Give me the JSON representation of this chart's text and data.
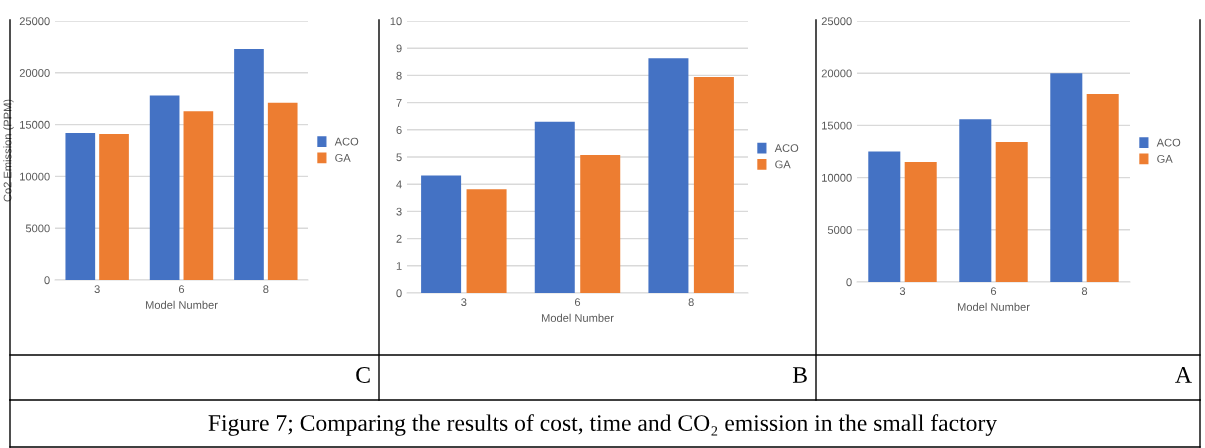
{
  "chart_data": [
    {
      "type": "bar",
      "categories": [
        "3",
        "6",
        "8"
      ],
      "xlabel": "Model Number",
      "ylabel": "Co2 Emission (PPM)",
      "ylim": [
        0,
        25000
      ],
      "yticks": [
        0,
        5000,
        10000,
        15000,
        20000,
        25000
      ],
      "grid": "y",
      "legend": "right",
      "series": [
        {
          "name": "ACO",
          "color": "#4472c4",
          "values": [
            14200,
            17800,
            22300
          ]
        },
        {
          "name": "GA",
          "color": "#ed7d31",
          "values": [
            14100,
            16300,
            17100
          ]
        }
      ],
      "annotations": [
        "C",
        "Figure 7; Comparing the results of cost, time and CO₂ emission in the small factory"
      ]
    },
    {
      "type": "bar",
      "categories": [
        "3",
        "6",
        "8"
      ],
      "xlabel": "Model Number",
      "ylim": [
        0,
        10
      ],
      "yticks": [
        0,
        1,
        2,
        3,
        4,
        5,
        6,
        7,
        8,
        9,
        10
      ],
      "grid": "y",
      "legend": "right",
      "series": [
        {
          "name": "ACO",
          "color": "#4472c4",
          "values": [
            4.32,
            6.3,
            8.63
          ]
        },
        {
          "name": "GA",
          "color": "#ed7d31",
          "values": [
            3.81,
            5.07,
            7.94
          ]
        }
      ],
      "annotations": [
        "B"
      ]
    },
    {
      "type": "bar",
      "categories": [
        "3",
        "6",
        "8"
      ],
      "xlabel": "Model Number",
      "ylim": [
        0,
        25000
      ],
      "yticks": [
        0,
        5000,
        10000,
        15000,
        20000,
        25000
      ],
      "grid": "y",
      "legend": "right",
      "series": [
        {
          "name": "ACO",
          "color": "#4472c4",
          "values": [
            12500,
            15600,
            20000
          ]
        },
        {
          "name": "GA",
          "color": "#ed7d31",
          "values": [
            11500,
            13400,
            18000
          ]
        }
      ],
      "annotations": [
        "A"
      ]
    }
  ]
}
